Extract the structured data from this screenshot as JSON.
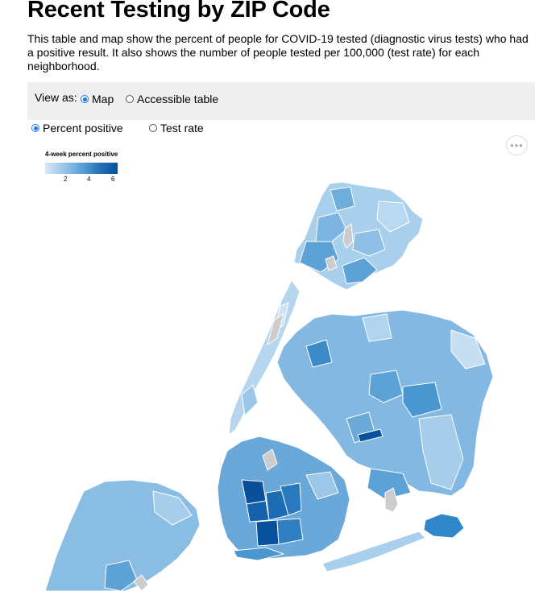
{
  "header": {
    "title": "Recent Testing by ZIP Code",
    "description": "This table and map show the percent of people for COVID-19 tested (diagnostic virus tests) who had a positive result. It also shows the number of people tested per 100,000 (test rate) for each neighborhood."
  },
  "view_toggle": {
    "label": "View as:",
    "options": [
      {
        "label": "Map",
        "selected": true
      },
      {
        "label": "Accessible table",
        "selected": false
      }
    ]
  },
  "metric_toggle": {
    "options": [
      {
        "label": "Percent positive",
        "selected": true
      },
      {
        "label": "Test rate",
        "selected": false
      }
    ]
  },
  "map": {
    "more_button_icon": "more-dots-icon",
    "more_button_glyph": "•••",
    "legend": {
      "title": "4-week percent positive",
      "ticks": [
        "2",
        "4",
        "6"
      ],
      "colors": [
        "#d6e8f6",
        "#9cc7e8",
        "#5da2d7",
        "#2473ba",
        "#08519c"
      ],
      "no_data_color": "#cccccc"
    }
  }
}
